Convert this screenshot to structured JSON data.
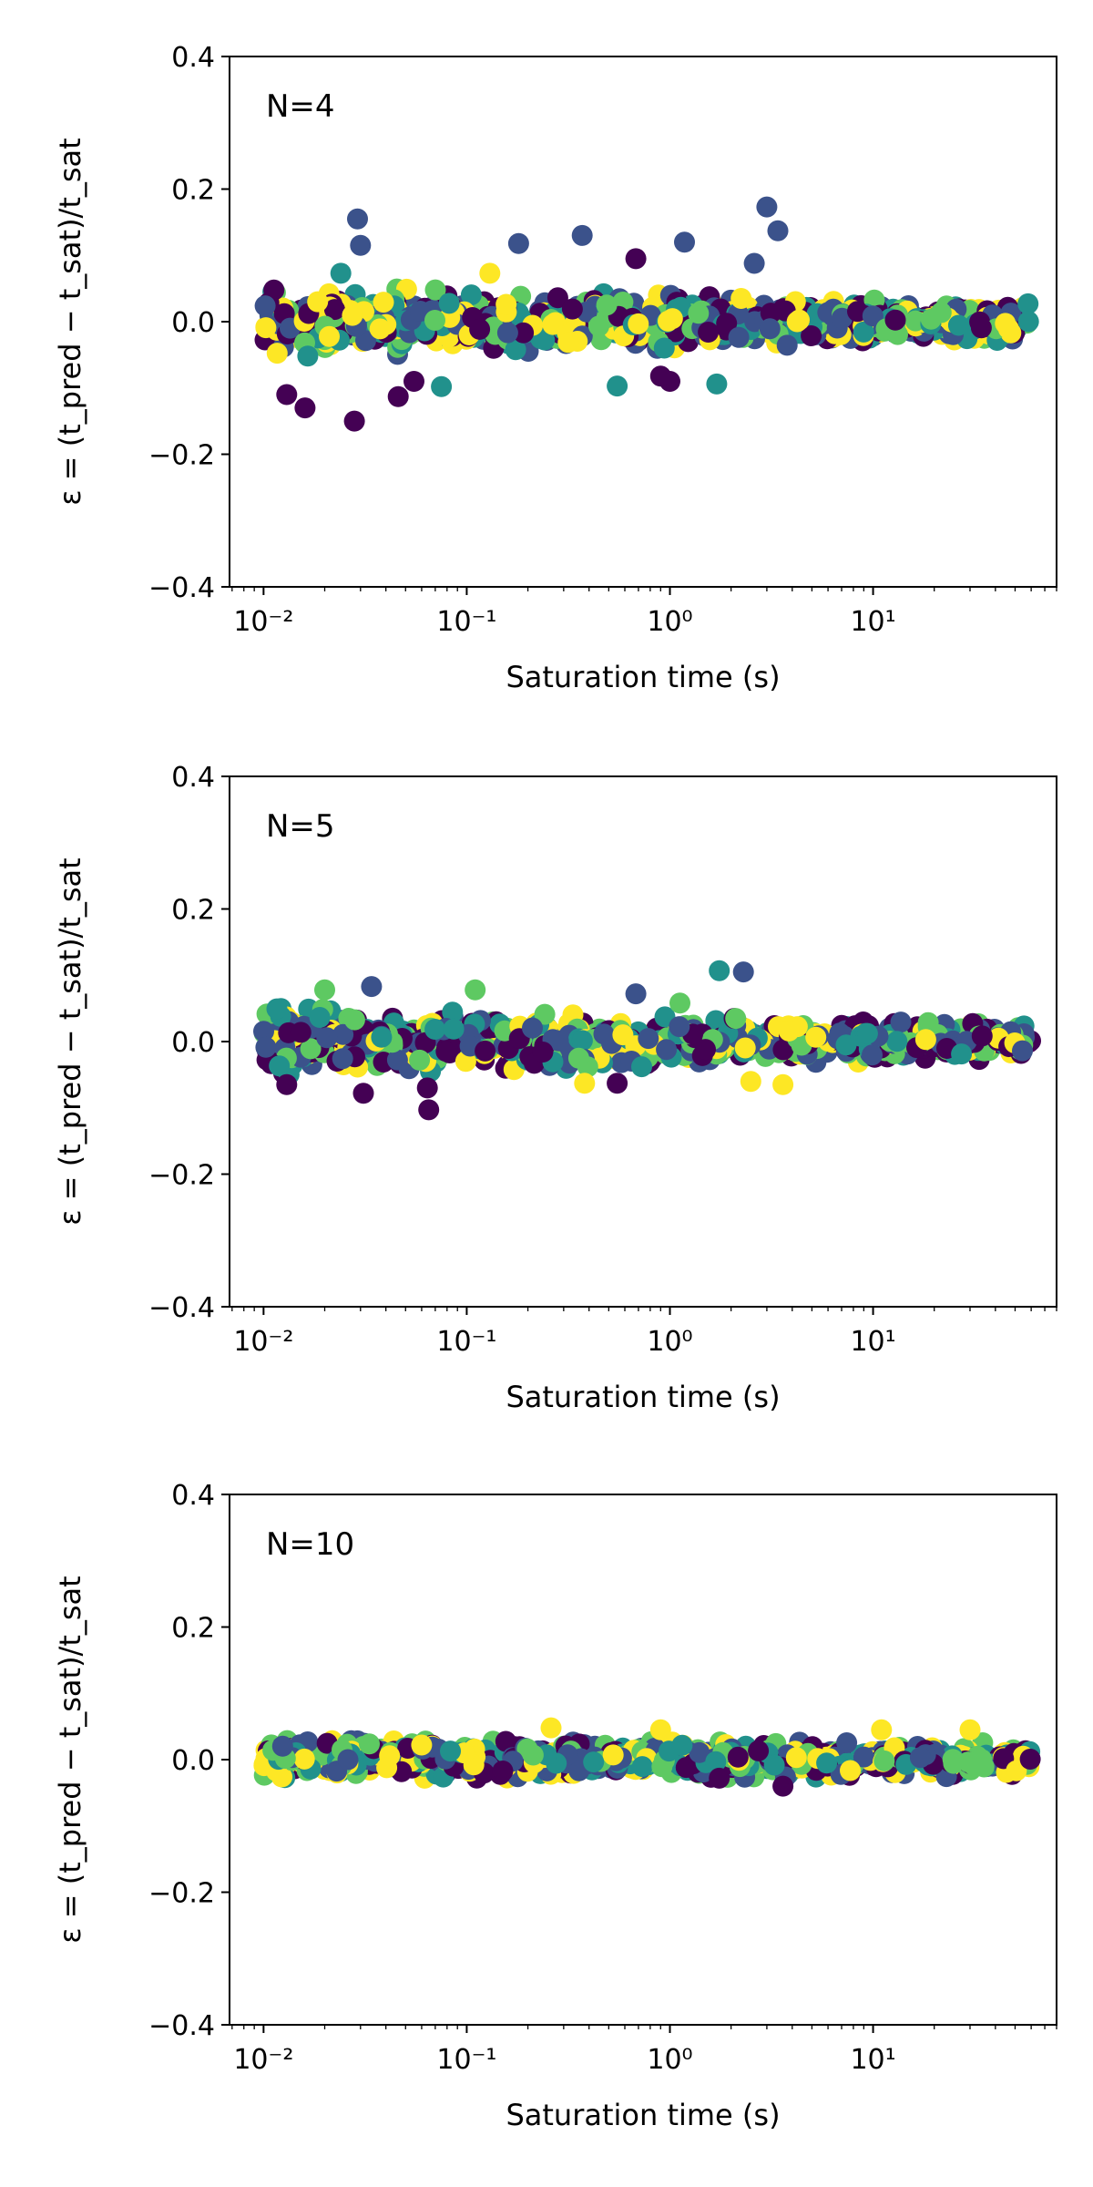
{
  "chart_data": [
    {
      "type": "scatter",
      "annotation": "N=4",
      "xlabel": "Saturation time (s)",
      "ylabel": "ε = (t_pred − t_sat)/t_sat",
      "xscale": "log",
      "xlim": [
        0.0068,
        80
      ],
      "ylim": [
        -0.4,
        0.4
      ],
      "xticks": [
        0.01,
        0.1,
        1,
        10
      ],
      "xtick_labels": [
        "10⁻²",
        "10⁻¹",
        "10⁰",
        "10¹"
      ],
      "yticks": [
        -0.4,
        -0.2,
        0.0,
        0.2,
        0.4
      ],
      "ytick_labels": [
        "−0.4",
        "−0.2",
        "0.0",
        "0.2",
        "0.4"
      ],
      "dense_band": {
        "x_range": [
          0.01,
          60
        ],
        "y_spread_start": 0.03,
        "y_spread_end": 0.015
      },
      "outliers": [
        [
          0.029,
          0.155,
          1
        ],
        [
          0.03,
          0.115,
          1
        ],
        [
          0.024,
          0.073,
          2
        ],
        [
          0.013,
          -0.11,
          0
        ],
        [
          0.016,
          -0.13,
          0
        ],
        [
          0.028,
          -0.15,
          0
        ],
        [
          0.046,
          -0.113,
          0
        ],
        [
          0.055,
          -0.09,
          0
        ],
        [
          0.075,
          -0.098,
          2
        ],
        [
          0.18,
          0.118,
          1
        ],
        [
          0.37,
          0.13,
          1
        ],
        [
          0.68,
          0.095,
          0
        ],
        [
          1.18,
          0.12,
          1
        ],
        [
          1.0,
          -0.09,
          0
        ],
        [
          0.55,
          -0.097,
          2
        ],
        [
          2.6,
          0.088,
          1
        ],
        [
          3.0,
          0.173,
          1
        ],
        [
          3.4,
          0.137,
          1
        ],
        [
          1.7,
          -0.094,
          2
        ],
        [
          0.13,
          0.073,
          4
        ],
        [
          0.9,
          -0.082,
          0
        ]
      ]
    },
    {
      "type": "scatter",
      "annotation": "N=5",
      "xlabel": "Saturation time (s)",
      "ylabel": "ε = (t_pred − t_sat)/t_sat",
      "xscale": "log",
      "xlim": [
        0.0068,
        80
      ],
      "ylim": [
        -0.4,
        0.4
      ],
      "xticks": [
        0.01,
        0.1,
        1,
        10
      ],
      "xtick_labels": [
        "10⁻²",
        "10⁻¹",
        "10⁰",
        "10¹"
      ],
      "yticks": [
        -0.4,
        -0.2,
        0.0,
        0.2,
        0.4
      ],
      "ytick_labels": [
        "−0.4",
        "−0.2",
        "0.0",
        "0.2",
        "0.4"
      ],
      "dense_band": {
        "x_range": [
          0.01,
          60
        ],
        "y_spread_start": 0.028,
        "y_spread_end": 0.014
      },
      "outliers": [
        [
          0.013,
          -0.065,
          0
        ],
        [
          0.031,
          -0.078,
          0
        ],
        [
          0.064,
          -0.07,
          0
        ],
        [
          0.065,
          -0.103,
          0
        ],
        [
          0.034,
          0.083,
          1
        ],
        [
          0.11,
          0.078,
          3
        ],
        [
          0.02,
          0.078,
          3
        ],
        [
          0.68,
          0.072,
          1
        ],
        [
          1.12,
          0.058,
          3
        ],
        [
          1.75,
          0.107,
          2
        ],
        [
          2.3,
          0.105,
          1
        ],
        [
          0.55,
          -0.063,
          0
        ],
        [
          0.38,
          -0.063,
          4
        ],
        [
          3.6,
          -0.065,
          4
        ],
        [
          2.5,
          -0.06,
          4
        ]
      ]
    },
    {
      "type": "scatter",
      "annotation": "N=10",
      "xlabel": "Saturation time (s)",
      "ylabel": "ε = (t_pred − t_sat)/t_sat",
      "xscale": "log",
      "xlim": [
        0.0068,
        80
      ],
      "ylim": [
        -0.4,
        0.4
      ],
      "xticks": [
        0.01,
        0.1,
        1,
        10
      ],
      "xtick_labels": [
        "10⁻²",
        "10⁻¹",
        "10⁰",
        "10¹"
      ],
      "yticks": [
        -0.4,
        -0.2,
        0.0,
        0.2,
        0.4
      ],
      "ytick_labels": [
        "−0.4",
        "−0.2",
        "0.0",
        "0.2",
        "0.4"
      ],
      "dense_band": {
        "x_range": [
          0.01,
          60
        ],
        "y_spread_start": 0.016,
        "y_spread_end": 0.014
      },
      "outliers": [
        [
          3.6,
          -0.04,
          0
        ],
        [
          1.75,
          -0.028,
          0
        ],
        [
          0.26,
          0.048,
          4
        ],
        [
          0.9,
          0.045,
          4
        ],
        [
          11,
          0.045,
          4
        ],
        [
          30,
          0.045,
          4
        ],
        [
          0.06,
          0.022,
          4
        ]
      ]
    }
  ],
  "palette": [
    "#440154",
    "#3b528b",
    "#21918c",
    "#5ec962",
    "#fde725"
  ]
}
